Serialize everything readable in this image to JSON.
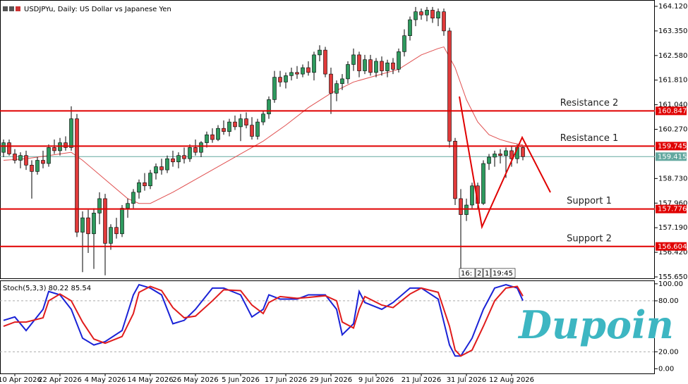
{
  "chart_data": [
    {
      "type": "candlestick",
      "title": "USDJPYu, Daily:  US Dollar vs Japanese Yen",
      "up_color": "#2e9a5e",
      "down_color": "#e03a3a",
      "ma_color": "#e05050",
      "ylim": [
        155.606,
        164.318
      ],
      "yticks": [
        {
          "value": 164.12,
          "label": "164.120"
        },
        {
          "value": 163.35,
          "label": "163.350"
        },
        {
          "value": 162.58,
          "label": "162.580"
        },
        {
          "value": 161.81,
          "label": "161.810"
        },
        {
          "value": 161.04,
          "label": "161.040"
        },
        {
          "value": 160.27,
          "label": "160.270"
        },
        {
          "value": 158.73,
          "label": "158.730"
        },
        {
          "value": 157.96,
          "label": "157.960"
        },
        {
          "value": 157.19,
          "label": "157.190"
        },
        {
          "value": 156.42,
          "label": "156.420"
        },
        {
          "value": 155.65,
          "label": "155.650"
        }
      ],
      "levels": [
        {
          "name": "Resistance 2",
          "value": 160.847
        },
        {
          "name": "Resistance 1",
          "value": 159.745
        },
        {
          "name": "Support 1",
          "value": 157.776
        },
        {
          "name": "Support 2",
          "value": 156.604
        }
      ],
      "level_color": "#e00000",
      "last_price": 159.415,
      "last_color": "#63a89f",
      "categories": [
        null,
        null,
        "10 Apr 2026",
        null,
        null,
        null,
        null,
        null,
        null,
        null,
        "22 Apr 2026",
        null,
        null,
        null,
        null,
        null,
        null,
        null,
        "4 May 2026",
        null,
        null,
        null,
        null,
        null,
        null,
        null,
        "14 May 2026",
        null,
        null,
        null,
        null,
        null,
        null,
        null,
        "26 May 2026",
        null,
        null,
        null,
        null,
        null,
        null,
        null,
        "5 Jun 2026",
        null,
        null,
        null,
        null,
        null,
        null,
        null,
        "17 Jun 2026",
        null,
        null,
        null,
        null,
        null,
        null,
        null,
        "29 Jun 2026",
        null,
        null,
        null,
        null,
        null,
        null,
        null,
        "9 Jul 2026",
        null,
        null,
        null,
        null,
        null,
        null,
        null,
        "21 Jul 2026",
        null,
        null,
        null,
        null,
        null,
        null,
        null,
        "31 Jul 2026",
        null,
        null,
        null,
        null,
        null,
        null,
        null,
        "12 Aug 2026",
        null,
        null
      ],
      "ohlc": [
        [
          159.55,
          159.95,
          159.4,
          159.85
        ],
        [
          159.85,
          159.95,
          159.45,
          159.5
        ],
        [
          159.5,
          159.65,
          159.2,
          159.3
        ],
        [
          159.3,
          159.55,
          159.05,
          159.45
        ],
        [
          159.45,
          159.6,
          159.0,
          159.15
        ],
        [
          159.15,
          159.3,
          158.1,
          158.95
        ],
        [
          158.95,
          159.4,
          158.85,
          159.3
        ],
        [
          159.3,
          159.6,
          159.05,
          159.2
        ],
        [
          159.2,
          159.8,
          159.1,
          159.7
        ],
        [
          159.7,
          159.95,
          159.5,
          159.6
        ],
        [
          159.6,
          160.0,
          159.45,
          159.85
        ],
        [
          159.85,
          160.05,
          159.6,
          159.7
        ],
        [
          159.7,
          160.99,
          159.6,
          160.6
        ],
        [
          160.6,
          160.75,
          156.9,
          157.05
        ],
        [
          157.05,
          157.7,
          155.8,
          157.5
        ],
        [
          157.5,
          157.75,
          156.4,
          157.0
        ],
        [
          157.0,
          157.8,
          155.9,
          157.65
        ],
        [
          157.65,
          158.3,
          157.3,
          158.1
        ],
        [
          158.1,
          158.25,
          155.7,
          156.7
        ],
        [
          156.7,
          157.3,
          156.5,
          157.2
        ],
        [
          157.2,
          157.5,
          156.85,
          157.0
        ],
        [
          157.0,
          157.9,
          156.9,
          157.8
        ],
        [
          157.8,
          158.1,
          157.5,
          157.95
        ],
        [
          157.95,
          158.4,
          157.8,
          158.3
        ],
        [
          158.3,
          158.7,
          158.1,
          158.6
        ],
        [
          158.6,
          158.9,
          158.35,
          158.5
        ],
        [
          158.5,
          159.0,
          158.4,
          158.9
        ],
        [
          158.9,
          159.2,
          158.7,
          159.1
        ],
        [
          159.1,
          159.35,
          158.85,
          159.0
        ],
        [
          159.0,
          159.45,
          158.9,
          159.35
        ],
        [
          159.35,
          159.6,
          159.1,
          159.25
        ],
        [
          159.25,
          159.55,
          159.05,
          159.45
        ],
        [
          159.45,
          159.7,
          159.2,
          159.35
        ],
        [
          159.35,
          159.8,
          159.25,
          159.7
        ],
        [
          159.7,
          159.95,
          159.45,
          159.55
        ],
        [
          159.55,
          159.9,
          159.4,
          159.85
        ],
        [
          159.85,
          160.2,
          159.7,
          160.1
        ],
        [
          160.1,
          160.3,
          159.85,
          159.95
        ],
        [
          159.95,
          160.4,
          159.9,
          160.3
        ],
        [
          160.3,
          160.55,
          160.1,
          160.2
        ],
        [
          160.2,
          160.6,
          160.05,
          160.5
        ],
        [
          160.5,
          160.7,
          160.25,
          160.35
        ],
        [
          160.35,
          160.75,
          159.9,
          160.6
        ],
        [
          160.6,
          160.8,
          160.3,
          160.4
        ],
        [
          160.4,
          160.65,
          159.95,
          160.05
        ],
        [
          160.05,
          160.6,
          159.95,
          160.5
        ],
        [
          160.5,
          160.85,
          160.4,
          160.75
        ],
        [
          160.75,
          161.3,
          160.6,
          161.2
        ],
        [
          161.2,
          162.1,
          161.1,
          161.9
        ],
        [
          161.9,
          162.1,
          161.6,
          161.75
        ],
        [
          161.75,
          162.05,
          161.55,
          161.95
        ],
        [
          161.95,
          162.2,
          161.8,
          162.05
        ],
        [
          162.05,
          162.25,
          161.85,
          162.0
        ],
        [
          162.0,
          162.3,
          161.9,
          162.2
        ],
        [
          162.2,
          162.4,
          161.95,
          162.05
        ],
        [
          162.05,
          162.7,
          161.8,
          162.6
        ],
        [
          162.6,
          162.9,
          162.4,
          162.75
        ],
        [
          162.75,
          162.85,
          161.9,
          162.0
        ],
        [
          162.0,
          162.2,
          160.75,
          161.4
        ],
        [
          161.4,
          161.8,
          161.15,
          161.7
        ],
        [
          161.7,
          162.0,
          161.5,
          161.85
        ],
        [
          161.85,
          162.4,
          161.7,
          162.3
        ],
        [
          162.3,
          162.8,
          162.1,
          162.6
        ],
        [
          162.6,
          162.7,
          161.9,
          162.1
        ],
        [
          162.1,
          162.6,
          162.0,
          162.45
        ],
        [
          162.45,
          162.6,
          161.95,
          162.05
        ],
        [
          162.05,
          162.5,
          161.9,
          162.4
        ],
        [
          162.4,
          162.55,
          161.95,
          162.1
        ],
        [
          162.1,
          162.45,
          161.9,
          162.35
        ],
        [
          162.35,
          162.5,
          162.0,
          162.15
        ],
        [
          162.15,
          162.8,
          162.05,
          162.7
        ],
        [
          162.7,
          163.4,
          162.55,
          163.2
        ],
        [
          163.2,
          163.8,
          163.05,
          163.7
        ],
        [
          163.7,
          164.1,
          163.5,
          163.95
        ],
        [
          163.95,
          164.05,
          163.7,
          163.85
        ],
        [
          163.85,
          164.1,
          163.65,
          164.0
        ],
        [
          164.0,
          164.1,
          163.6,
          163.75
        ],
        [
          163.75,
          164.05,
          163.5,
          163.95
        ],
        [
          163.95,
          164.05,
          163.2,
          163.35
        ],
        [
          163.35,
          163.45,
          159.7,
          159.9
        ],
        [
          159.9,
          160.0,
          157.9,
          158.1
        ],
        [
          158.1,
          158.4,
          155.65,
          157.6
        ],
        [
          157.6,
          158.1,
          157.4,
          157.9
        ],
        [
          157.9,
          158.6,
          157.8,
          158.5
        ],
        [
          158.5,
          158.6,
          157.8,
          157.95
        ],
        [
          157.95,
          159.3,
          157.9,
          159.2
        ],
        [
          159.2,
          159.5,
          159.0,
          159.4
        ],
        [
          159.4,
          159.6,
          159.1,
          159.5
        ],
        [
          159.5,
          159.65,
          159.2,
          159.45
        ],
        [
          159.45,
          159.7,
          158.75,
          159.6
        ],
        [
          159.6,
          159.75,
          159.1,
          159.35
        ],
        [
          159.35,
          159.8,
          159.2,
          159.7
        ],
        [
          159.7,
          159.75,
          159.3,
          159.415
        ]
      ],
      "ma": {
        "x": [
          0,
          4,
          8,
          12,
          14,
          18,
          22,
          24,
          26,
          30,
          34,
          38,
          42,
          46,
          50,
          54,
          58,
          62,
          66,
          70,
          74,
          77,
          78,
          80,
          82,
          84,
          86,
          88,
          90,
          92
        ],
        "values": [
          159.3,
          159.35,
          159.45,
          159.55,
          159.3,
          158.7,
          158.1,
          157.95,
          157.95,
          158.3,
          158.7,
          159.1,
          159.5,
          159.9,
          160.4,
          160.95,
          161.4,
          161.75,
          161.95,
          162.15,
          162.6,
          162.8,
          162.85,
          162.2,
          161.2,
          160.5,
          160.1,
          159.95,
          159.85,
          159.78
        ]
      }
    },
    {
      "type": "line",
      "title": "Stoch(5,3,3) 80.22 85.54",
      "ylim": [
        -5.5,
        104
      ],
      "yticks": [
        {
          "value": 100,
          "label": "100.00"
        },
        {
          "value": 80,
          "label": "80.00"
        },
        {
          "value": 20,
          "label": "20.00"
        },
        {
          "value": 0,
          "label": "0.00"
        }
      ],
      "levels": [
        80,
        20
      ],
      "x": [
        0,
        2,
        4,
        7,
        8,
        10,
        12,
        14,
        16,
        18,
        21,
        23,
        24,
        26,
        28,
        30,
        32,
        34,
        37,
        39,
        42,
        44,
        46,
        47,
        49,
        52,
        54,
        57,
        59,
        60,
        62,
        63,
        64,
        67,
        69,
        72,
        74,
        77,
        79,
        80,
        81,
        83,
        85,
        87,
        89,
        91,
        92
      ],
      "series": [
        {
          "color": "#1a22d6",
          "values": [
            57,
            61,
            45,
            70,
            91,
            87,
            70,
            36,
            28,
            32,
            45,
            87,
            99,
            95,
            87,
            53,
            57,
            70,
            95,
            95,
            87,
            61,
            70,
            87,
            82,
            82,
            87,
            87,
            70,
            40,
            53,
            91,
            78,
            70,
            78,
            95,
            95,
            82,
            28,
            15,
            15,
            36,
            70,
            95,
            99,
            95,
            80.22
          ]
        },
        {
          "color": "#e01c1c",
          "values": [
            50,
            55,
            55,
            60,
            80,
            88,
            80,
            55,
            35,
            30,
            38,
            65,
            90,
            97,
            92,
            72,
            60,
            62,
            80,
            93,
            92,
            75,
            65,
            78,
            85,
            83,
            84,
            86,
            80,
            55,
            48,
            70,
            85,
            75,
            72,
            88,
            95,
            90,
            50,
            22,
            15,
            22,
            50,
            80,
            95,
            97,
            85.54
          ]
        }
      ]
    }
  ],
  "timer_labels": [
    "16:",
    "2",
    "1",
    "19:45"
  ],
  "logo": "Dupoin"
}
